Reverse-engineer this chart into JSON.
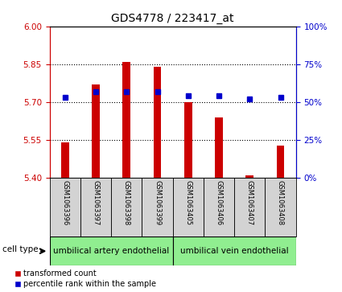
{
  "title": "GDS4778 / 223417_at",
  "samples": [
    "GSM1063396",
    "GSM1063397",
    "GSM1063398",
    "GSM1063399",
    "GSM1063405",
    "GSM1063406",
    "GSM1063407",
    "GSM1063408"
  ],
  "transformed_count": [
    5.54,
    5.77,
    5.86,
    5.84,
    5.7,
    5.64,
    5.41,
    5.53
  ],
  "percentile_rank": [
    53,
    57,
    57,
    57,
    54,
    54,
    52,
    53
  ],
  "bar_bottom": 5.4,
  "ylim_left": [
    5.4,
    6.0
  ],
  "ylim_right": [
    0,
    100
  ],
  "yticks_left": [
    5.4,
    5.55,
    5.7,
    5.85,
    6.0
  ],
  "yticks_right": [
    0,
    25,
    50,
    75,
    100
  ],
  "ytick_labels_right": [
    "0%",
    "25%",
    "50%",
    "75%",
    "100%"
  ],
  "bar_color": "#cc0000",
  "dot_color": "#0000cc",
  "bar_width": 0.25,
  "groups": [
    {
      "label": "umbilical artery endothelial",
      "start": 0,
      "end": 4,
      "color": "#90ee90"
    },
    {
      "label": "umbilical vein endothelial",
      "start": 4,
      "end": 8,
      "color": "#90ee90"
    }
  ],
  "cell_type_label": "cell type",
  "legend_entries": [
    {
      "label": "transformed count",
      "color": "#cc0000"
    },
    {
      "label": "percentile rank within the sample",
      "color": "#0000cc"
    }
  ],
  "background_color": "#ffffff",
  "label_box_color": "#d3d3d3",
  "tick_label_color_left": "#cc0000",
  "tick_label_color_right": "#0000cc",
  "dotted_lines": [
    5.55,
    5.7,
    5.85
  ]
}
